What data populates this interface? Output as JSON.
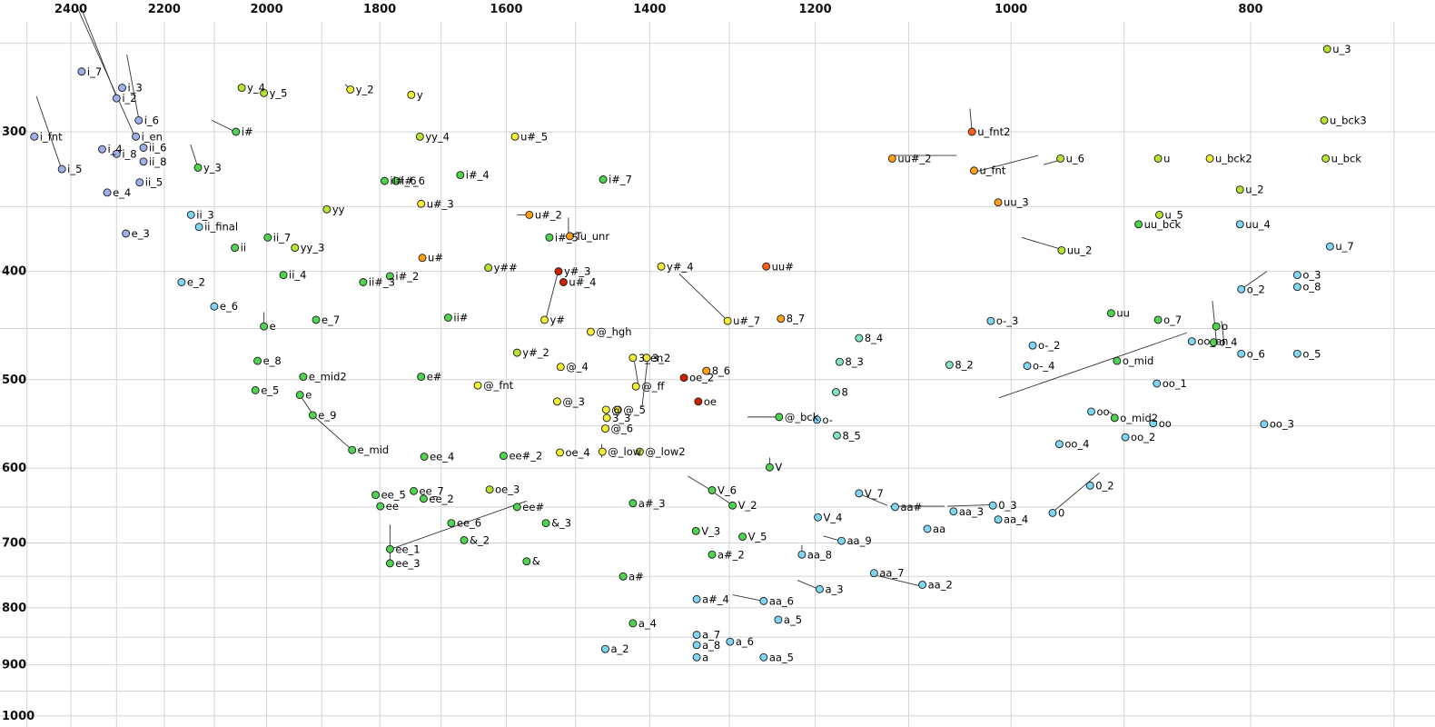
{
  "chart_data": {
    "type": "scatter",
    "title": "",
    "xlabel": "",
    "ylabel": "",
    "x_axis": {
      "position": "top",
      "scale": "log",
      "reversed": true,
      "range": [
        2560,
        675
      ]
    },
    "y_axis": {
      "position": "left",
      "scale": "log",
      "increases_downward": true,
      "range": [
        230,
        1020
      ]
    },
    "x_ticks": [
      2400,
      2200,
      2000,
      1800,
      1600,
      1400,
      1200,
      1000,
      800
    ],
    "y_ticks": [
      300,
      400,
      500,
      600,
      700,
      800,
      900,
      1000
    ],
    "grid": true,
    "palette": {
      "blue": "#9db1e8",
      "lightblue": "#7fd6f2",
      "teal": "#7fe3bb",
      "green": "#4ed44e",
      "yellowgreen": "#b5e330",
      "yellow": "#f2ee33",
      "orange": "#ffa019",
      "redorange": "#ff5f19",
      "red": "#cc2200"
    },
    "points": [
      [
        "i_7",
        2376,
        265,
        "blue"
      ],
      [
        "i_3",
        2288,
        274,
        "blue"
      ],
      [
        "i_2",
        2300,
        280,
        "blue"
      ],
      [
        "i_6",
        2253,
        293,
        "blue"
      ],
      [
        "i_en",
        2259,
        303,
        "blue"
      ],
      [
        "i_fnt",
        2483,
        303,
        "blue"
      ],
      [
        "i_4",
        2331,
        311,
        "blue"
      ],
      [
        "i_8",
        2300,
        314,
        "blue"
      ],
      [
        "ii_6",
        2243,
        310,
        "blue"
      ],
      [
        "ii_8",
        2243,
        319,
        "blue"
      ],
      [
        "i_5",
        2420,
        324,
        "blue"
      ],
      [
        "ii_5",
        2251,
        333,
        "blue"
      ],
      [
        "e_4",
        2320,
        340,
        "blue"
      ],
      [
        "ii_3",
        2146,
        356,
        "lightblue"
      ],
      [
        "ii_final",
        2130,
        365,
        "lightblue"
      ],
      [
        "e_3",
        2280,
        370,
        "blue"
      ],
      [
        "ii_7",
        1998,
        373,
        "green"
      ],
      [
        "ii",
        2060,
        381,
        "green"
      ],
      [
        "yy_3",
        1948,
        381,
        "yellowgreen"
      ],
      [
        "i#",
        2058,
        300,
        "green"
      ],
      [
        "y_3",
        2132,
        323,
        "green"
      ],
      [
        "y_4",
        2047,
        274,
        "yellowgreen"
      ],
      [
        "y_5",
        2005,
        277,
        "yellowgreen"
      ],
      [
        "y_2",
        1850,
        275,
        "yellow"
      ],
      [
        "y",
        1748,
        278,
        "yellow"
      ],
      [
        "yy_4",
        1734,
        303,
        "yellowgreen"
      ],
      [
        "u#_5",
        1587,
        303,
        "yellow"
      ],
      [
        "ii#_6",
        1792,
        332,
        "green"
      ],
      [
        "i#_6",
        1773,
        332,
        "green"
      ],
      [
        "i#_4",
        1670,
        328,
        "green"
      ],
      [
        "u#_3",
        1732,
        348,
        "yellow"
      ],
      [
        "i#_7",
        1462,
        331,
        "green"
      ],
      [
        "u#_2",
        1566,
        356,
        "orange"
      ],
      [
        "yy",
        1891,
        352,
        "yellowgreen"
      ],
      [
        "Tu_unr",
        1508,
        372,
        "orange"
      ],
      [
        "i#_5",
        1537,
        373,
        "green"
      ],
      [
        "u#",
        1730,
        389,
        "orange"
      ],
      [
        "y##",
        1627,
        397,
        "yellowgreen"
      ],
      [
        "y#_4",
        1385,
        396,
        "yellow"
      ],
      [
        "uu#",
        1256,
        396,
        "redorange"
      ],
      [
        "u_fnt2",
        1037,
        300,
        "redorange"
      ],
      [
        "uu#_2",
        1117,
        317,
        "orange"
      ],
      [
        "u_fnt",
        1035,
        325,
        "orange"
      ],
      [
        "u_6",
        955,
        317,
        "yellowgreen"
      ],
      [
        "u",
        872,
        317,
        "yellowgreen"
      ],
      [
        "u_bck2",
        831,
        317,
        "yellow"
      ],
      [
        "u_bck3",
        747,
        293,
        "yellowgreen"
      ],
      [
        "u_bck",
        746,
        317,
        "yellowgreen"
      ],
      [
        "u_2",
        808,
        338,
        "yellowgreen"
      ],
      [
        "uu_3",
        1012,
        347,
        "orange"
      ],
      [
        "u_5",
        871,
        356,
        "yellowgreen"
      ],
      [
        "uu_bck",
        888,
        363,
        "green"
      ],
      [
        "uu_4",
        808,
        363,
        "lightblue"
      ],
      [
        "u_7",
        743,
        380,
        "lightblue"
      ],
      [
        "uu_2",
        954,
        383,
        "yellowgreen"
      ],
      [
        "u_3",
        745,
        253,
        "yellowgreen"
      ],
      [
        "o_3",
        766,
        403,
        "lightblue"
      ],
      [
        "o_8",
        766,
        413,
        "lightblue"
      ],
      [
        "o_2",
        807,
        415,
        "lightblue"
      ],
      [
        "e_2",
        2165,
        409,
        "lightblue"
      ],
      [
        "ii_4",
        1969,
        403,
        "green"
      ],
      [
        "ii#_3",
        1828,
        409,
        "green"
      ],
      [
        "i#_2",
        1783,
        404,
        "green"
      ],
      [
        "e_6",
        2100,
        430,
        "lightblue"
      ],
      [
        "e_7",
        1910,
        442,
        "green"
      ],
      [
        "e",
        2005,
        448,
        "green"
      ],
      [
        "ii#",
        1689,
        440,
        "green"
      ],
      [
        "y#",
        1544,
        442,
        "yellow"
      ],
      [
        "@_hgh",
        1479,
        453,
        "yellow"
      ],
      [
        "u#_7",
        1302,
        443,
        "yellow"
      ],
      [
        "8_7",
        1239,
        441,
        "orange"
      ],
      [
        "8_4",
        1152,
        459,
        "teal"
      ],
      [
        "e_8",
        2017,
        481,
        "green"
      ],
      [
        "e_mid2",
        1933,
        497,
        "green"
      ],
      [
        "y#_2",
        1584,
        473,
        "yellowgreen"
      ],
      [
        "@_4",
        1521,
        487,
        "yellow"
      ],
      [
        "3_en",
        1422,
        478,
        "yellow"
      ],
      [
        "3_2",
        1404,
        478,
        "yellow"
      ],
      [
        "8_6",
        1328,
        491,
        "orange"
      ],
      [
        "8_3",
        1173,
        482,
        "teal"
      ],
      [
        "8_2",
        1059,
        485,
        "teal"
      ],
      [
        "o-_3",
        1019,
        443,
        "lightblue"
      ],
      [
        "uu",
        911,
        436,
        "green"
      ],
      [
        "o_7",
        872,
        442,
        "green"
      ],
      [
        "o",
        826,
        448,
        "green"
      ],
      [
        "oo_en",
        845,
        462,
        "lightblue"
      ],
      [
        "o_4",
        828,
        463,
        "green"
      ],
      [
        "o-_2",
        980,
        466,
        "lightblue"
      ],
      [
        "o-_4",
        985,
        486,
        "lightblue"
      ],
      [
        "o_mid",
        906,
        481,
        "green"
      ],
      [
        "oo_1",
        873,
        504,
        "lightblue"
      ],
      [
        "o_6",
        807,
        474,
        "lightblue"
      ],
      [
        "o_5",
        766,
        474,
        "lightblue"
      ],
      [
        "e_5",
        2021,
        511,
        "green"
      ],
      [
        "e",
        1939,
        516,
        "green"
      ],
      [
        "e_9",
        1916,
        538,
        "green"
      ],
      [
        "e_mid",
        1847,
        578,
        "green"
      ],
      [
        "e#",
        1732,
        497,
        "green"
      ],
      [
        "@_fnt",
        1643,
        506,
        "yellow"
      ],
      [
        "@_3",
        1526,
        523,
        "yellow"
      ],
      [
        "@_ff",
        1418,
        507,
        "yellow"
      ],
      [
        "@",
        1458,
        532,
        "yellow"
      ],
      [
        "@_5",
        1442,
        532,
        "yellow"
      ],
      [
        "3_3",
        1457,
        541,
        "yellow"
      ],
      [
        "@_6",
        1459,
        553,
        "yellow"
      ],
      [
        "oe_2",
        1356,
        498,
        "red"
      ],
      [
        "oe",
        1338,
        523,
        "red"
      ],
      [
        "y#_3",
        1524,
        400,
        "red"
      ],
      [
        "u#_4",
        1517,
        409,
        "red"
      ],
      [
        "8",
        1177,
        513,
        "teal"
      ],
      [
        "@_bck",
        1241,
        540,
        "green"
      ],
      [
        "o-",
        1198,
        543,
        "lightblue"
      ],
      [
        "8_5",
        1176,
        561,
        "teal"
      ],
      [
        "oo",
        928,
        534,
        "lightblue"
      ],
      [
        "o_mid2",
        908,
        541,
        "green"
      ],
      [
        "oo",
        876,
        547,
        "lightblue"
      ],
      [
        "oo_2",
        899,
        563,
        "lightblue"
      ],
      [
        "oo_3",
        790,
        548,
        "lightblue"
      ],
      [
        "oo_4",
        956,
        571,
        "lightblue"
      ],
      [
        "ee_4",
        1727,
        586,
        "green"
      ],
      [
        "ee#_2",
        1604,
        585,
        "green"
      ],
      [
        "oe_4",
        1522,
        581,
        "yellow"
      ],
      [
        "@_low",
        1463,
        580,
        "yellow"
      ],
      [
        "@_low2",
        1413,
        580,
        "yellowgreen"
      ],
      [
        "V",
        1252,
        599,
        "green"
      ],
      [
        "ee_5",
        1807,
        634,
        "green"
      ],
      [
        "ee",
        1799,
        649,
        "green"
      ],
      [
        "ee_7",
        1744,
        629,
        "green"
      ],
      [
        "ee_2",
        1728,
        639,
        "green"
      ],
      [
        "oe_3",
        1625,
        627,
        "yellowgreen"
      ],
      [
        "ee#",
        1584,
        650,
        "green"
      ],
      [
        "&_3",
        1542,
        672,
        "green"
      ],
      [
        "a#_3",
        1422,
        645,
        "green"
      ],
      [
        "V_6",
        1321,
        628,
        "green"
      ],
      [
        "V_2",
        1296,
        648,
        "green"
      ],
      [
        "V_7",
        1152,
        632,
        "lightblue"
      ],
      [
        "aa#",
        1114,
        650,
        "lightblue"
      ],
      [
        "aa_3",
        1055,
        656,
        "lightblue"
      ],
      [
        "0_3",
        1017,
        648,
        "lightblue"
      ],
      [
        "0",
        962,
        658,
        "lightblue"
      ],
      [
        "0_2",
        929,
        622,
        "lightblue"
      ],
      [
        "V_4",
        1197,
        664,
        "lightblue"
      ],
      [
        "aa",
        1081,
        680,
        "lightblue"
      ],
      [
        "aa_4",
        1012,
        667,
        "lightblue"
      ],
      [
        "V_3",
        1341,
        683,
        "green"
      ],
      [
        "V_5",
        1284,
        691,
        "green"
      ],
      [
        "a#_2",
        1321,
        717,
        "green"
      ],
      [
        "aa_8",
        1215,
        717,
        "lightblue"
      ],
      [
        "aa_9",
        1171,
        697,
        "lightblue"
      ],
      [
        "ee_6",
        1684,
        672,
        "green"
      ],
      [
        "&_2",
        1664,
        696,
        "green"
      ],
      [
        "ee_1",
        1783,
        709,
        "green"
      ],
      [
        "ee_3",
        1783,
        730,
        "green"
      ],
      [
        "&",
        1570,
        727,
        "green"
      ],
      [
        "a#",
        1435,
        750,
        "green"
      ],
      [
        "a_4",
        1422,
        826,
        "green"
      ],
      [
        "a#_4",
        1340,
        786,
        "lightblue"
      ],
      [
        "aa_6",
        1259,
        789,
        "lightblue"
      ],
      [
        "a_5",
        1242,
        820,
        "lightblue"
      ],
      [
        "a_7",
        1340,
        846,
        "lightblue"
      ],
      [
        "a_8",
        1340,
        864,
        "lightblue"
      ],
      [
        "a_6",
        1299,
        858,
        "lightblue"
      ],
      [
        "a_2",
        1459,
        871,
        "lightblue"
      ],
      [
        "a",
        1340,
        886,
        "lightblue"
      ],
      [
        "aa_5",
        1259,
        886,
        "lightblue"
      ],
      [
        "aa_7",
        1136,
        745,
        "lightblue"
      ],
      [
        "aa_2",
        1086,
        763,
        "lightblue"
      ],
      [
        "a_3",
        1195,
        770,
        "lightblue"
      ]
    ],
    "segments": [
      [
        [
          2384,
          233
        ],
        [
          2261,
          303
        ]
      ],
      [
        [
          2376,
          233
        ],
        [
          2299,
          280
        ]
      ],
      [
        [
          2278,
          256
        ],
        [
          2253,
          292
        ]
      ],
      [
        [
          2478,
          279
        ],
        [
          2422,
          323
        ]
      ],
      [
        [
          2105,
          293
        ],
        [
          2059,
          300
        ]
      ],
      [
        [
          2147,
          308
        ],
        [
          2133,
          322
        ]
      ],
      [
        [
          1584,
          356
        ],
        [
          1567,
          356
        ]
      ],
      [
        [
          1510,
          358
        ],
        [
          1510,
          371
        ]
      ],
      [
        [
          1039,
          286
        ],
        [
          1037,
          300
        ]
      ],
      [
        [
          1119,
          315
        ],
        [
          1052,
          315
        ]
      ],
      [
        [
          1035,
          326
        ],
        [
          975,
          315
        ]
      ],
      [
        [
          970,
          321
        ],
        [
          955,
          318
        ]
      ],
      [
        [
          990,
          373
        ],
        [
          955,
          382
        ]
      ],
      [
        [
          807,
          415
        ],
        [
          788,
          400
        ]
      ],
      [
        [
          829,
          425
        ],
        [
          826,
          461
        ]
      ],
      [
        [
          822,
          443
        ],
        [
          820,
          464
        ]
      ],
      [
        [
          1011,
          519
        ],
        [
          849,
          454
        ]
      ],
      [
        [
          1061,
          649
        ],
        [
          1018,
          647
        ]
      ],
      [
        [
          962,
          657
        ],
        [
          921,
          606
        ]
      ],
      [
        [
          1119,
          649
        ],
        [
          1064,
          649
        ]
      ],
      [
        [
          1149,
          634
        ],
        [
          1122,
          648
        ]
      ],
      [
        [
          1132,
          749
        ],
        [
          1088,
          765
        ]
      ],
      [
        [
          1220,
          756
        ],
        [
          1196,
          770
        ]
      ],
      [
        [
          1191,
          690
        ],
        [
          1172,
          697
        ]
      ],
      [
        [
          1296,
          779
        ],
        [
          1260,
          789
        ]
      ],
      [
        [
          1215,
          703
        ],
        [
          1215,
          717
        ]
      ],
      [
        [
          1252,
          587
        ],
        [
          1252,
          598
        ]
      ],
      [
        [
          1351,
          610
        ],
        [
          1322,
          628
        ]
      ],
      [
        [
          1320,
          630
        ],
        [
          1298,
          646
        ]
      ],
      [
        [
          1782,
          709
        ],
        [
          1570,
          642
        ]
      ],
      [
        [
          1783,
          674
        ],
        [
          1783,
          730
        ]
      ],
      [
        [
          2005,
          435
        ],
        [
          2005,
          448
        ]
      ],
      [
        [
          1914,
          539
        ],
        [
          1847,
          578
        ]
      ],
      [
        [
          1939,
          516
        ],
        [
          1916,
          537
        ]
      ],
      [
        [
          1464,
          571
        ],
        [
          1464,
          587
        ]
      ],
      [
        [
          1420,
          482
        ],
        [
          1415,
          505
        ]
      ],
      [
        [
          1403,
          482
        ],
        [
          1410,
          529
        ]
      ],
      [
        [
          1525,
          401
        ],
        [
          1542,
          441
        ]
      ],
      [
        [
          1362,
          402
        ],
        [
          1303,
          442
        ]
      ],
      [
        [
          1859,
          272
        ],
        [
          1850,
          275
        ]
      ],
      [
        [
          1278,
          540
        ],
        [
          1243,
          540
        ]
      ],
      [
        [
          913,
          534
        ],
        [
          906,
          541
        ]
      ]
    ]
  }
}
